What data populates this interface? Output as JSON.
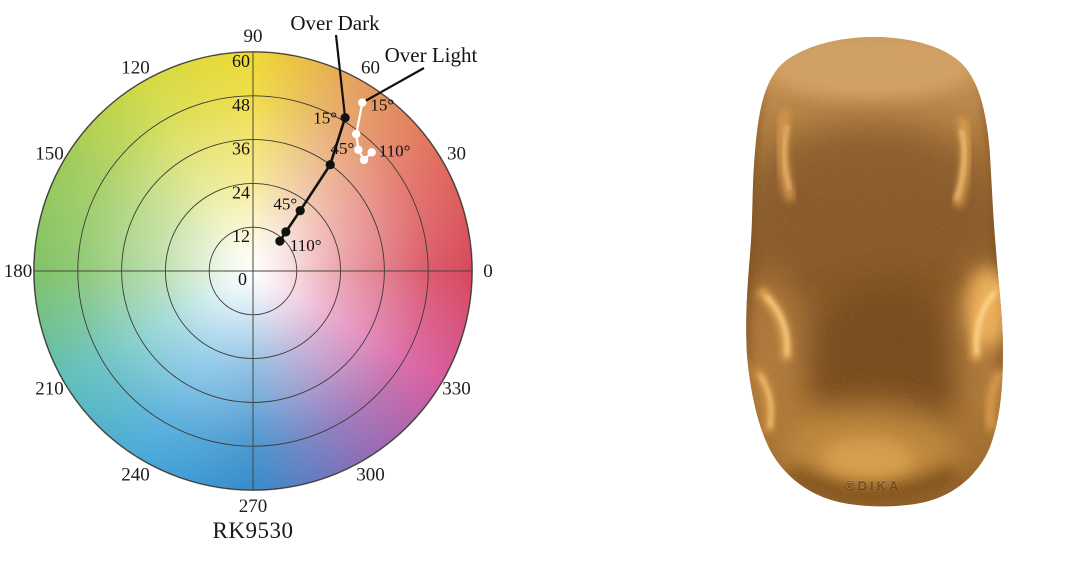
{
  "figure": {
    "background": "#ffffff"
  },
  "chart_data": {
    "type": "line",
    "polar": true,
    "title": "RK9530",
    "angular_tick_labels": [
      "0",
      "30",
      "60",
      "90",
      "120",
      "150",
      "180",
      "210",
      "240",
      "270",
      "300",
      "330"
    ],
    "radial_tick_labels": [
      "0",
      "12",
      "24",
      "36",
      "48",
      "60"
    ],
    "radial_range": [
      0,
      60
    ],
    "grid": true,
    "legend_position": "none",
    "aspecular_angles_deg": [
      15,
      25,
      45,
      75,
      110
    ],
    "series": [
      {
        "name": "Over Dark",
        "color": "#111111",
        "points": [
          {
            "aspecular": 15,
            "hue": 59,
            "chroma": 49,
            "label": "15°"
          },
          {
            "aspecular": 25,
            "hue": 54,
            "chroma": 36
          },
          {
            "aspecular": 45,
            "hue": 52,
            "chroma": 21,
            "label": "45°"
          },
          {
            "aspecular": 75,
            "hue": 50,
            "chroma": 14
          },
          {
            "aspecular": 110,
            "hue": 48,
            "chroma": 11,
            "label": "110°"
          }
        ]
      },
      {
        "name": "Over Light",
        "color": "#ffffff",
        "points": [
          {
            "aspecular": 15,
            "hue": 57,
            "chroma": 55,
            "label": "15°"
          },
          {
            "aspecular": 25,
            "hue": 53,
            "chroma": 47
          },
          {
            "aspecular": 45,
            "hue": 49,
            "chroma": 44,
            "label": "45°"
          },
          {
            "aspecular": 75,
            "hue": 45,
            "chroma": 43
          },
          {
            "aspecular": 110,
            "hue": 45,
            "chroma": 46,
            "label": "110°"
          }
        ]
      }
    ],
    "annotations": [
      {
        "text": "Over Dark",
        "series": 0
      },
      {
        "text": "Over Light",
        "series": 1
      }
    ],
    "wheel_colors": [
      {
        "hue": 0,
        "hex": "#d02940"
      },
      {
        "hue": 30,
        "hex": "#dc5245"
      },
      {
        "hue": 60,
        "hex": "#df8f44"
      },
      {
        "hue": 90,
        "hex": "#ecd310"
      },
      {
        "hue": 120,
        "hex": "#ccd426"
      },
      {
        "hue": 150,
        "hex": "#8ec33e"
      },
      {
        "hue": 180,
        "hex": "#6cb84d"
      },
      {
        "hue": 210,
        "hex": "#45b4b0"
      },
      {
        "hue": 240,
        "hex": "#2a9ad4"
      },
      {
        "hue": 270,
        "hex": "#1478c2"
      },
      {
        "hue": 300,
        "hex": "#7a55ab"
      },
      {
        "hue": 330,
        "hex": "#d2418f"
      }
    ]
  },
  "photo": {
    "logo_text": "®DIKA",
    "paint_colors": {
      "base": "#a9763c",
      "dark_shadow": "#74491c",
      "highlight": "#ffd179",
      "rim_light": "#c9985c"
    }
  }
}
